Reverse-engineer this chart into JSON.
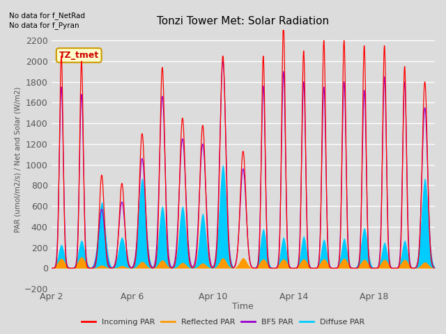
{
  "title": "Tonzi Tower Met: Solar Radiation",
  "xlabel": "Time",
  "ylabel": "PAR (umol/m2/s) / Net and Solar (W/m2)",
  "no_data_text": [
    "No data for f_NetRad",
    "No data for f_Pyran"
  ],
  "tz_label": "TZ_tmet",
  "ylim": [
    -200,
    2300
  ],
  "yticks": [
    -200,
    0,
    200,
    400,
    600,
    800,
    1000,
    1200,
    1400,
    1600,
    1800,
    2000,
    2200
  ],
  "xticklabels": [
    "Apr 2",
    "Apr 6",
    "Apr 10",
    "Apr 14",
    "Apr 18"
  ],
  "colors": {
    "incoming": "#ff0000",
    "reflected": "#ff9900",
    "bf5": "#9900cc",
    "diffuse": "#00ccff"
  },
  "legend_items": [
    "Incoming PAR",
    "Reflected PAR",
    "BF5 PAR",
    "Diffuse PAR"
  ],
  "n_days": 19,
  "day_peaks_incoming": [
    2050,
    2000,
    900,
    820,
    1300,
    1940,
    1450,
    1380,
    2050,
    1130,
    2050,
    2350,
    2100,
    2200,
    2200,
    2150,
    2150,
    1950,
    1800
  ],
  "day_peaks_bf5": [
    1750,
    1680,
    570,
    640,
    1060,
    1660,
    1250,
    1200,
    2000,
    960,
    1760,
    1900,
    1800,
    1750,
    1800,
    1720,
    1850,
    1800,
    1550
  ],
  "day_peaks_diffuse": [
    230,
    270,
    640,
    300,
    870,
    600,
    600,
    530,
    1000,
    0,
    380,
    300,
    310,
    280,
    290,
    390,
    250,
    270,
    870
  ],
  "day_peaks_reflected": [
    95,
    110,
    30,
    25,
    65,
    80,
    55,
    50,
    100,
    100,
    90,
    90,
    90,
    90,
    95,
    85,
    85,
    85,
    60
  ],
  "day_widths_incoming": [
    0.09,
    0.09,
    0.12,
    0.13,
    0.14,
    0.12,
    0.14,
    0.14,
    0.14,
    0.14,
    0.09,
    0.09,
    0.09,
    0.09,
    0.09,
    0.09,
    0.09,
    0.09,
    0.13
  ],
  "day_widths_bf5": [
    0.1,
    0.1,
    0.15,
    0.15,
    0.16,
    0.14,
    0.16,
    0.16,
    0.15,
    0.15,
    0.1,
    0.1,
    0.1,
    0.1,
    0.1,
    0.1,
    0.1,
    0.1,
    0.14
  ],
  "day_widths_diffuse": [
    0.15,
    0.16,
    0.18,
    0.17,
    0.18,
    0.17,
    0.17,
    0.16,
    0.18,
    0.0,
    0.15,
    0.14,
    0.14,
    0.14,
    0.14,
    0.16,
    0.14,
    0.14,
    0.17
  ],
  "day_widths_reflected": [
    0.17,
    0.17,
    0.17,
    0.17,
    0.17,
    0.17,
    0.17,
    0.17,
    0.17,
    0.17,
    0.17,
    0.17,
    0.17,
    0.17,
    0.17,
    0.17,
    0.17,
    0.17,
    0.17
  ]
}
